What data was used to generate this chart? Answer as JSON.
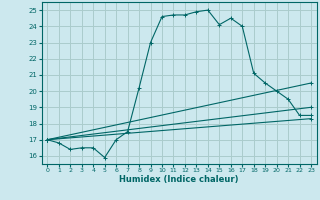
{
  "xlabel": "Humidex (Indice chaleur)",
  "xlim": [
    -0.5,
    23.5
  ],
  "ylim": [
    15.5,
    25.5
  ],
  "yticks": [
    16,
    17,
    18,
    19,
    20,
    21,
    22,
    23,
    24,
    25
  ],
  "xticks": [
    0,
    1,
    2,
    3,
    4,
    5,
    6,
    7,
    8,
    9,
    10,
    11,
    12,
    13,
    14,
    15,
    16,
    17,
    18,
    19,
    20,
    21,
    22,
    23
  ],
  "bg_color": "#cce8ee",
  "grid_color": "#aacccc",
  "line_color": "#006666",
  "lines": [
    {
      "x": [
        0,
        1,
        2,
        3,
        4,
        5,
        6,
        7,
        8,
        9,
        10,
        11,
        12,
        13,
        14,
        15,
        16,
        17,
        18,
        19,
        20,
        21,
        22,
        23
      ],
      "y": [
        17.0,
        16.8,
        16.4,
        16.5,
        16.5,
        15.9,
        17.0,
        17.5,
        20.2,
        23.0,
        24.6,
        24.7,
        24.7,
        24.9,
        25.0,
        24.1,
        24.5,
        24.0,
        21.1,
        20.5,
        20.0,
        19.5,
        18.5,
        18.5
      ],
      "marker": true
    },
    {
      "x": [
        0,
        23
      ],
      "y": [
        17.0,
        20.5
      ],
      "marker": true
    },
    {
      "x": [
        0,
        23
      ],
      "y": [
        17.0,
        19.0
      ],
      "marker": true
    },
    {
      "x": [
        0,
        23
      ],
      "y": [
        17.0,
        18.3
      ],
      "marker": true
    }
  ]
}
